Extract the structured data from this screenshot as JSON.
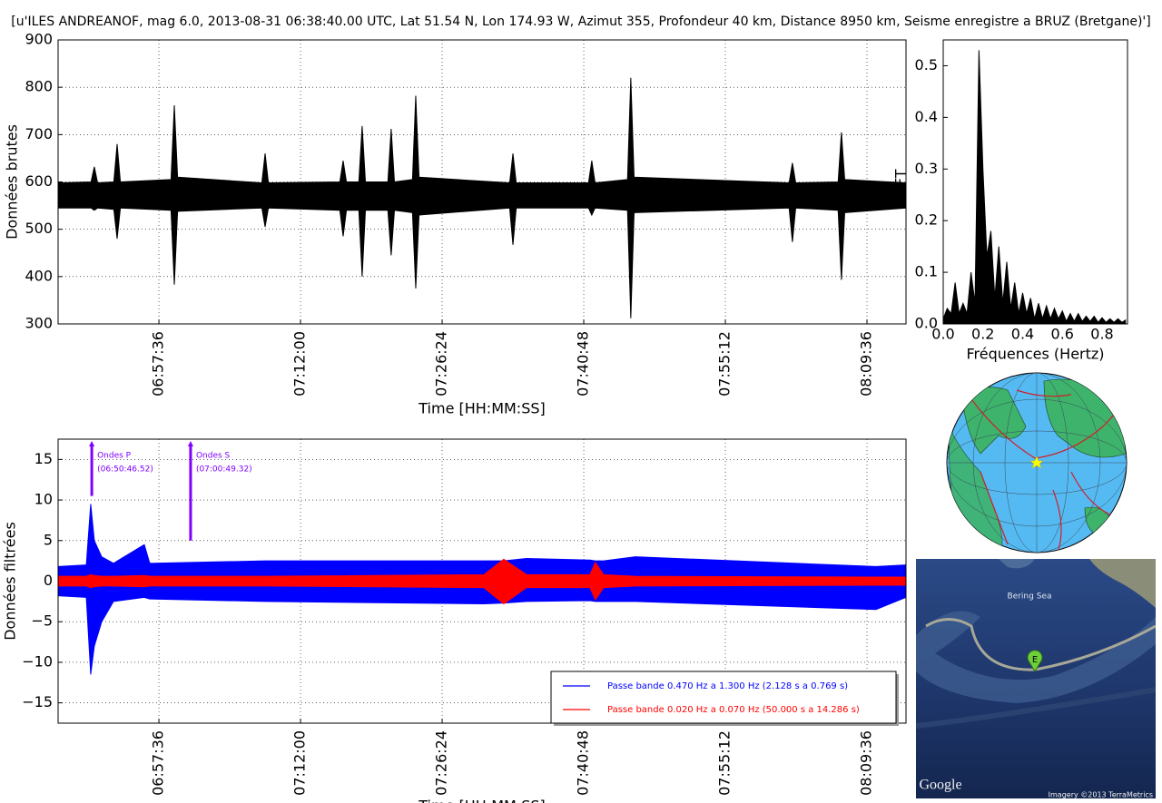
{
  "title": "[u'ILES ANDREANOF, mag 6.0, 2013-08-31 06:38:40.00 UTC, Lat 51.54 N, Lon 174.93 W, Azimut 355, Profondeur 40 km, Distance 8950 km, Seisme enregistre a BRUZ (Bretgane)']",
  "chart_data": [
    {
      "type": "area",
      "xlabel": "Time [HH:MM:SS]",
      "ylabel": "Données brutes",
      "color": "#000000",
      "grid": true,
      "xtick_rotation": 90,
      "xlim": [
        "06:47:21",
        "08:13:34"
      ],
      "ylim": [
        300,
        900
      ],
      "xticks": [
        "06:57:36",
        "07:12:00",
        "07:26:24",
        "07:40:48",
        "07:55:12",
        "08:09:36"
      ],
      "yticks": [
        300,
        400,
        500,
        600,
        700,
        800,
        900
      ],
      "x": [
        "06:47:21",
        "06:50:42",
        "06:51:02",
        "06:51:22",
        "06:53:01",
        "06:53:21",
        "06:53:41",
        "06:58:50",
        "06:59:10",
        "06:59:30",
        "07:08:04",
        "07:08:24",
        "07:08:44",
        "07:16:00",
        "07:16:20",
        "07:16:40",
        "07:17:56",
        "07:18:16",
        "07:18:36",
        "07:20:53",
        "07:21:13",
        "07:21:33",
        "07:23:23",
        "07:23:43",
        "07:24:03",
        "07:33:16",
        "07:33:36",
        "07:33:56",
        "07:41:17",
        "07:41:37",
        "07:41:57",
        "07:45:15",
        "07:45:35",
        "07:45:55",
        "08:01:41",
        "08:02:01",
        "08:02:21",
        "08:06:40",
        "08:07:00",
        "08:07:20",
        "08:13:34"
      ],
      "low": [
        545,
        545,
        540,
        545,
        542,
        480,
        545,
        540,
        383,
        538,
        545,
        505,
        545,
        540,
        485,
        540,
        540,
        400,
        540,
        540,
        445,
        540,
        535,
        375,
        530,
        545,
        467,
        545,
        545,
        530,
        545,
        540,
        312,
        535,
        545,
        473,
        545,
        540,
        393,
        535,
        545
      ],
      "high": [
        598,
        600,
        632,
        598,
        600,
        680,
        600,
        605,
        762,
        610,
        598,
        660,
        598,
        600,
        645,
        600,
        600,
        718,
        600,
        600,
        712,
        600,
        605,
        782,
        610,
        598,
        660,
        598,
        598,
        645,
        598,
        605,
        820,
        610,
        598,
        640,
        598,
        600,
        705,
        605,
        598
      ]
    },
    {
      "type": "area",
      "xlabel": "Fréquences (Hertz)",
      "ylabel": "FFT",
      "color": "#000000",
      "grid": false,
      "xlim": [
        0,
        0.928
      ],
      "ylim": [
        0,
        0.55
      ],
      "xticks": [
        {
          "value": 0,
          "label": "0.0"
        },
        {
          "value": 0.2,
          "label": "0.2"
        },
        {
          "value": 0.4,
          "label": "0.4"
        },
        {
          "value": 0.6,
          "label": "0.6"
        },
        {
          "value": 0.8,
          "label": "0.8"
        }
      ],
      "yticks": [
        {
          "value": 0,
          "label": "0.0"
        },
        {
          "value": 0.1,
          "label": "0.1"
        },
        {
          "value": 0.2,
          "label": "0.2"
        },
        {
          "value": 0.3,
          "label": "0.3"
        },
        {
          "value": 0.4,
          "label": "0.4"
        },
        {
          "value": 0.5,
          "label": "0.5"
        }
      ],
      "x": [
        0,
        0.02,
        0.04,
        0.06,
        0.08,
        0.1,
        0.12,
        0.14,
        0.16,
        0.18,
        0.2,
        0.22,
        0.24,
        0.26,
        0.28,
        0.3,
        0.32,
        0.34,
        0.36,
        0.38,
        0.4,
        0.42,
        0.44,
        0.46,
        0.48,
        0.5,
        0.52,
        0.54,
        0.56,
        0.58,
        0.6,
        0.62,
        0.64,
        0.66,
        0.68,
        0.7,
        0.72,
        0.74,
        0.76,
        0.78,
        0.8,
        0.82,
        0.84,
        0.86,
        0.88,
        0.9,
        0.92
      ],
      "values": [
        0.01,
        0.03,
        0.02,
        0.08,
        0.02,
        0.04,
        0.02,
        0.1,
        0.04,
        0.53,
        0.3,
        0.13,
        0.18,
        0.05,
        0.15,
        0.04,
        0.12,
        0.03,
        0.08,
        0.02,
        0.06,
        0.02,
        0.05,
        0.01,
        0.04,
        0.01,
        0.035,
        0.01,
        0.03,
        0.01,
        0.025,
        0.005,
        0.02,
        0.005,
        0.02,
        0.005,
        0.015,
        0.005,
        0.015,
        0.003,
        0.012,
        0.003,
        0.01,
        0.003,
        0.01,
        0.003,
        0.008
      ]
    },
    {
      "type": "area",
      "xlabel": "Time [HH:MM:SS]",
      "ylabel": "Données filtrées",
      "grid": true,
      "xtick_rotation": 90,
      "legend": "lower right",
      "xlim": [
        "06:47:21",
        "08:13:34"
      ],
      "ylim": [
        -17.5,
        17.5
      ],
      "xticks": [
        "06:57:36",
        "07:12:00",
        "07:26:24",
        "07:40:48",
        "07:55:12",
        "08:09:36"
      ],
      "yticks": [
        {
          "value": -15,
          "label": "−15"
        },
        {
          "value": -10,
          "label": "−10"
        },
        {
          "value": -5,
          "label": "−5"
        },
        0,
        5,
        10,
        15
      ],
      "x": [
        "06:47:21",
        "06:50:13",
        "06:50:40",
        "06:51:02",
        "06:51:47",
        "06:52:59",
        "06:56:07",
        "06:56:40",
        "07:08:24",
        "07:30:38",
        "07:32:40",
        "07:34:59",
        "07:41:26",
        "07:41:59",
        "07:42:49",
        "07:46:03",
        "08:10:31",
        "08:13:34"
      ],
      "series": [
        {
          "name": "Passe bande 0.470 Hz a 1.300 Hz (2.128 s a 0.769 s)",
          "color": "#0000ff",
          "low": [
            -1.8,
            -2,
            -11.5,
            -8,
            -5,
            -2.5,
            -2,
            -2.2,
            -2.5,
            -2.8,
            -2.7,
            -2.5,
            -2.4,
            -2.5,
            -2.5,
            -2.5,
            -3.5,
            -2
          ],
          "high": [
            1.8,
            2,
            9.5,
            5,
            3,
            2.2,
            4.5,
            2.2,
            2.5,
            2.5,
            2.5,
            2.8,
            2.6,
            2.5,
            2.5,
            3,
            1.8,
            2
          ]
        },
        {
          "name": "Passe bande 0.020 Hz a 0.070 Hz (50.000 s a 14.286 s)",
          "color": "#ff0000",
          "low": [
            -0.6,
            -0.6,
            -0.8,
            -0.7,
            -0.6,
            -0.6,
            -0.7,
            -0.6,
            -0.6,
            -0.8,
            -2.8,
            -0.8,
            -0.8,
            -2.3,
            -0.8,
            -0.6,
            -0.5,
            -0.5
          ],
          "high": [
            0.6,
            0.6,
            0.8,
            0.7,
            0.6,
            0.6,
            0.7,
            0.6,
            0.6,
            0.8,
            2.7,
            0.8,
            0.8,
            2.3,
            0.8,
            0.6,
            0.5,
            0.5
          ]
        }
      ],
      "annotations": [
        {
          "label": "Ondes P",
          "time": "(06:50:46.52)",
          "y": 10.5,
          "color": "#7f00ff"
        },
        {
          "label": "Ondes S",
          "time": "(07:00:49.32)",
          "y": 5,
          "color": "#7f00ff"
        }
      ]
    }
  ],
  "map": {
    "sea": "Bering Sea",
    "marker": "E",
    "logo": "Google",
    "credit": "Imagery ©2013 TerraMetrics"
  }
}
